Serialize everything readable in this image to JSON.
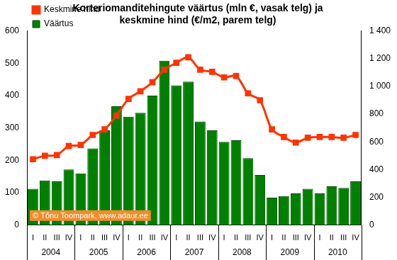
{
  "chart_data": {
    "type": "bar",
    "title": [
      "Korteriomanditehingute väärtus (mln €, vasak telg) ja",
      "keskmine hind (€/m2, parem telg)"
    ],
    "categories": [
      "I",
      "II",
      "III",
      "IV",
      "I",
      "II",
      "III",
      "IV",
      "I",
      "II",
      "III",
      "IV",
      "I",
      "II",
      "III",
      "IV",
      "I",
      "II",
      "III",
      "IV",
      "I",
      "II",
      "III",
      "IV",
      "I",
      "II",
      "III",
      "IV"
    ],
    "year_groups": [
      {
        "label": "2004",
        "count": 4
      },
      {
        "label": "2005",
        "count": 4
      },
      {
        "label": "2006",
        "count": 4
      },
      {
        "label": "2007",
        "count": 4
      },
      {
        "label": "2008",
        "count": 4
      },
      {
        "label": "2009",
        "count": 4
      },
      {
        "label": "2010",
        "count": 4
      }
    ],
    "series": [
      {
        "name": "Väärtus",
        "type": "bar",
        "color": "#008000",
        "values": [
          112,
          138,
          135,
          172,
          160,
          237,
          293,
          367,
          335,
          347,
          400,
          508,
          432,
          443,
          320,
          293,
          257,
          262,
          207,
          155,
          85,
          90,
          98,
          112,
          98,
          120,
          115,
          135
        ]
      },
      {
        "name": "Keskmine hind",
        "type": "line",
        "color": "#ff3300",
        "marker": "square",
        "axis": "y2",
        "values": [
          475,
          500,
          505,
          570,
          578,
          650,
          690,
          790,
          910,
          965,
          1030,
          1120,
          1170,
          1210,
          1120,
          1105,
          1065,
          1075,
          950,
          900,
          690,
          635,
          595,
          630,
          635,
          635,
          630,
          650
        ]
      }
    ],
    "ylim": [
      0,
      600
    ],
    "yticks": [
      0,
      100,
      200,
      300,
      400,
      500,
      600
    ],
    "y2lim": [
      0,
      1400
    ],
    "y2ticks": [
      0,
      200,
      400,
      600,
      800,
      {
        "value": 1000,
        "label": "1 000"
      },
      {
        "value": 1200,
        "label": "1 200"
      },
      {
        "value": 1400,
        "label": "1 400"
      }
    ],
    "grid": false,
    "legend": "upper left",
    "annotations": [
      {
        "text": "© Tõnu Toompark, www.adaur.ee"
      }
    ]
  }
}
